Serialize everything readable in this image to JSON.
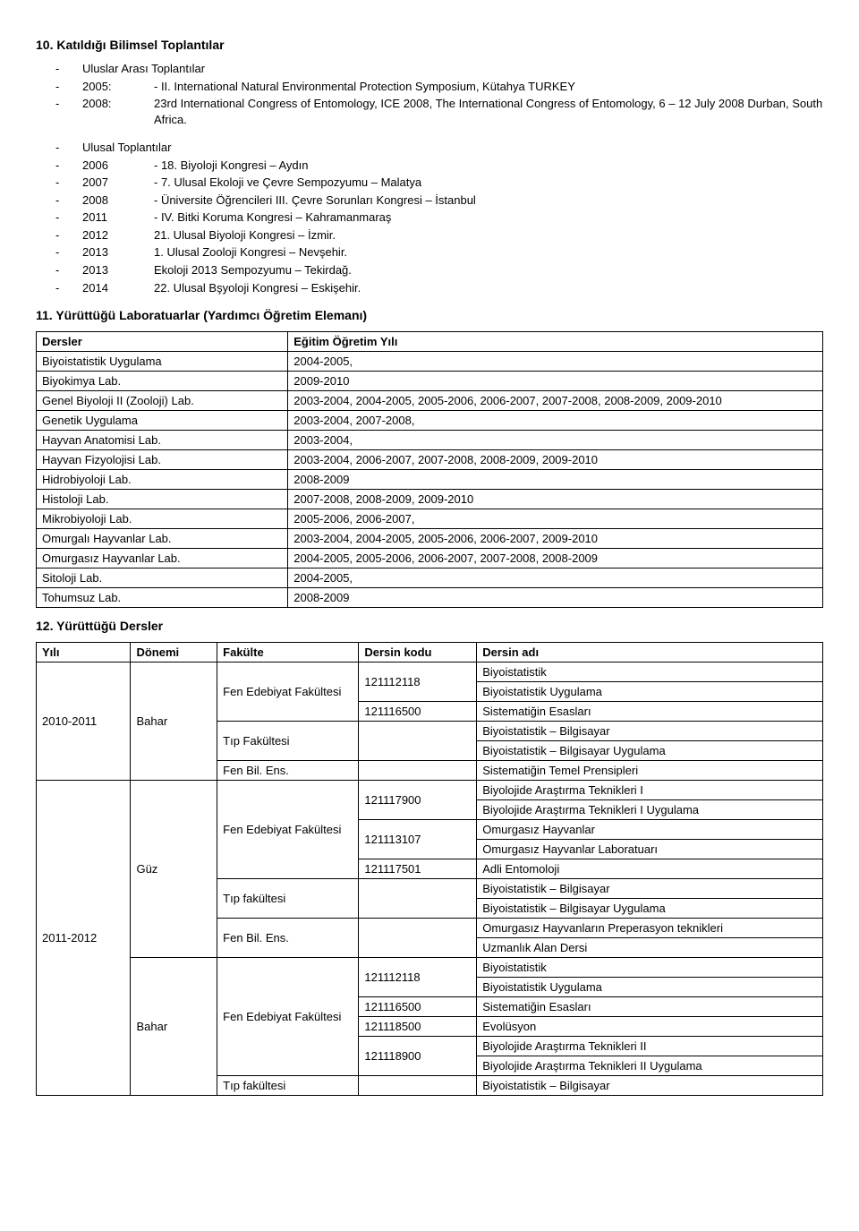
{
  "section10": {
    "heading": "10. Katıldığı Bilimsel Toplantılar",
    "group1_label": "Uluslar Arası Toplantılar",
    "group1_items": [
      {
        "year": "2005:",
        "text": "- II. International Natural Environmental Protection Symposium, Kütahya TURKEY"
      },
      {
        "year": "2008:",
        "text": "23rd International Congress of Entomology, ICE 2008, The International Congress of Entomology, 6 – 12 July 2008 Durban, South Africa."
      }
    ],
    "group2_label": "Ulusal Toplantılar",
    "group2_items": [
      {
        "year": "2006",
        "text": "- 18. Biyoloji Kongresi – Aydın"
      },
      {
        "year": "2007",
        "text": "- 7. Ulusal Ekoloji ve Çevre Sempozyumu – Malatya"
      },
      {
        "year": "2008",
        "text": "- Üniversite Öğrencileri III. Çevre Sorunları Kongresi – İstanbul"
      },
      {
        "year": "2011",
        "text": "- IV. Bitki Koruma Kongresi – Kahramanmaraş"
      },
      {
        "year": "2012",
        "text": "21. Ulusal Biyoloji Kongresi – İzmir."
      },
      {
        "year": "2013",
        "text": "1. Ulusal Zooloji Kongresi – Nevşehir."
      },
      {
        "year": "2013",
        "text": "Ekoloji 2013 Sempozyumu – Tekirdağ."
      },
      {
        "year": "2014",
        "text": "22. Ulusal Bşyoloji Kongresi – Eskişehir."
      }
    ]
  },
  "section11": {
    "heading": "11. Yürüttüğü Laboratuarlar (Yardımcı Öğretim Elemanı)",
    "col1": "Dersler",
    "col2": "Eğitim Öğretim Yılı",
    "rows": [
      [
        "Biyoistatistik Uygulama",
        "2004-2005,"
      ],
      [
        "Biyokimya Lab.",
        "2009-2010"
      ],
      [
        "Genel Biyoloji II (Zooloji) Lab.",
        "2003-2004, 2004-2005, 2005-2006, 2006-2007, 2007-2008, 2008-2009, 2009-2010"
      ],
      [
        "Genetik Uygulama",
        "2003-2004, 2007-2008,"
      ],
      [
        "Hayvan Anatomisi Lab.",
        "2003-2004,"
      ],
      [
        "Hayvan Fizyolojisi Lab.",
        "2003-2004, 2006-2007, 2007-2008, 2008-2009, 2009-2010"
      ],
      [
        "Hidrobiyoloji Lab.",
        "2008-2009"
      ],
      [
        "Histoloji Lab.",
        "2007-2008, 2008-2009, 2009-2010"
      ],
      [
        "Mikrobiyoloji Lab.",
        "2005-2006, 2006-2007,"
      ],
      [
        "Omurgalı Hayvanlar Lab.",
        "2003-2004, 2004-2005, 2005-2006, 2006-2007, 2009-2010"
      ],
      [
        "Omurgasız Hayvanlar Lab.",
        "2004-2005, 2005-2006, 2006-2007, 2007-2008, 2008-2009"
      ],
      [
        "Sitoloji Lab.",
        "2004-2005,"
      ],
      [
        "Tohumsuz Lab.",
        "2008-2009"
      ]
    ]
  },
  "section12": {
    "heading": "12. Yürüttüğü Dersler",
    "headers": [
      "Yılı",
      "Dönemi",
      "Fakülte",
      "Dersin kodu",
      "Dersin adı"
    ],
    "year1": "2010-2011",
    "year1_sem": "Bahar",
    "year1_fac1": "Fen Edebiyat Fakültesi",
    "year1_code1": "121112118",
    "year1_code2": "121116500",
    "year1_name1": "Biyoistatistik",
    "year1_name2": "Biyoistatistik Uygulama",
    "year1_name3": "Sistematiğin Esasları",
    "year1_fac2": "Tıp Fakültesi",
    "year1_name4": "Biyoistatistik – Bilgisayar",
    "year1_name5": "Biyoistatistik – Bilgisayar Uygulama",
    "year1_fac3": "Fen Bil. Ens.",
    "year1_name6": "Sistematiğin Temel Prensipleri",
    "year2": "2011-2012",
    "year2_sem1": "Güz",
    "year2_fac1": "Fen Edebiyat Fakültesi",
    "year2_code1": "121117900",
    "year2_name1": "Biyolojide Araştırma Teknikleri I",
    "year2_name2": "Biyolojide Araştırma Teknikleri I Uygulama",
    "year2_code2": "121113107",
    "year2_name3": "Omurgasız Hayvanlar",
    "year2_name4": "Omurgasız Hayvanlar Laboratuarı",
    "year2_code3": "121117501",
    "year2_name5": "Adli Entomoloji",
    "year2_fac2": "Tıp fakültesi",
    "year2_name6": "Biyoistatistik – Bilgisayar",
    "year2_name7": "Biyoistatistik – Bilgisayar Uygulama",
    "year2_fac3": "Fen Bil. Ens.",
    "year2_name8": "Omurgasız Hayvanların Preperasyon teknikleri",
    "year2_name9": "Uzmanlık Alan Dersi",
    "year2_sem2": "Bahar",
    "year2_fac4": "Fen Edebiyat Fakültesi",
    "year2_code4": "121112118",
    "year2_name10": "Biyoistatistik",
    "year2_name11": "Biyoistatistik Uygulama",
    "year2_code5": "121116500",
    "year2_name12": "Sistematiğin Esasları",
    "year2_code6": "121118500",
    "year2_name13": "Evolüsyon",
    "year2_code7": "121118900",
    "year2_name14": "Biyolojide Araştırma Teknikleri II",
    "year2_name15": "Biyolojide Araştırma Teknikleri II Uygulama",
    "year2_fac5": "Tıp fakültesi",
    "year2_name16": "Biyoistatistik – Bilgisayar"
  }
}
